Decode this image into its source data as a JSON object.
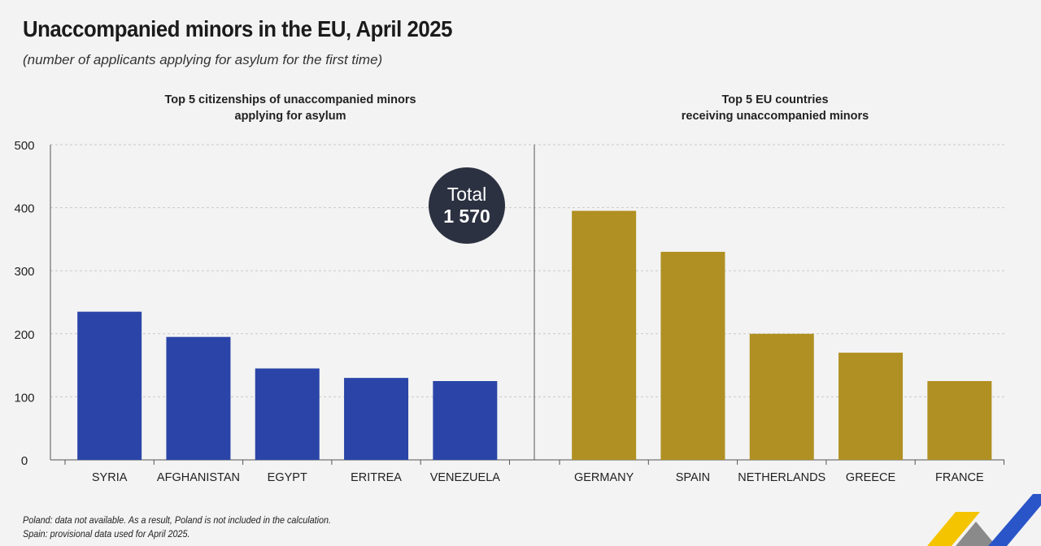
{
  "title": "Unaccompanied minors in the EU, April 2025",
  "subtitle": "(number of applicants applying for asylum for the first time)",
  "total": {
    "label": "Total",
    "value": "1 570"
  },
  "footnotes": [
    "Poland: data not available. As a result, Poland is not included in the calculation.",
    "Spain: provisional data used for April 2025."
  ],
  "colors": {
    "left": "#2a45a7",
    "right": "#b09022",
    "grid": "#c9c9c9",
    "axis": "#555555"
  },
  "chart_data": [
    {
      "type": "bar",
      "title": [
        "Top 5 citizenships of unaccompanied minors",
        "applying for asylum"
      ],
      "categories": [
        "SYRIA",
        "AFGHANISTAN",
        "EGYPT",
        "ERITREA",
        "VENEZUELA"
      ],
      "values": [
        235,
        195,
        145,
        130,
        125
      ],
      "ylim": [
        0,
        500
      ],
      "yticks": [
        0,
        100,
        200,
        300,
        400,
        500
      ],
      "grid": true
    },
    {
      "type": "bar",
      "title": [
        "Top 5 EU countries",
        "receiving unaccompanied minors"
      ],
      "categories": [
        "GERMANY",
        "SPAIN",
        "NETHERLANDS",
        "GREECE",
        "FRANCE"
      ],
      "values": [
        395,
        330,
        200,
        170,
        125
      ],
      "ylim": [
        0,
        500
      ],
      "grid": true
    }
  ]
}
